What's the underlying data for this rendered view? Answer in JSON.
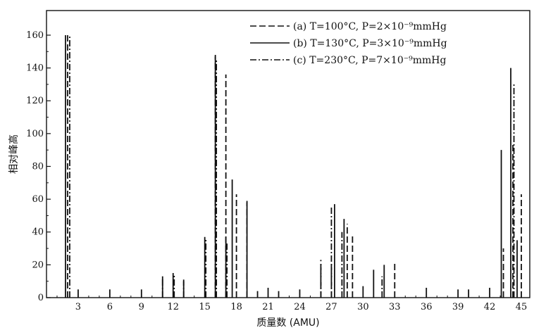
{
  "chart_data": {
    "type": "bar",
    "xlabel": "质量数 (AMU)",
    "ylabel": "相对峰高",
    "xlim": [
      0,
      45.8
    ],
    "ylim": [
      0,
      175
    ],
    "xticks": [
      3,
      6,
      9,
      12,
      15,
      18,
      21,
      24,
      27,
      30,
      33,
      36,
      39,
      42,
      45
    ],
    "yticks": [
      0,
      20,
      40,
      60,
      80,
      100,
      120,
      140,
      160
    ],
    "grid": false,
    "legend_position": "top-right",
    "series": [
      {
        "name": "(a) T=100°C, P=2×10⁻⁹mmHg",
        "line_style": "dashed",
        "points": [
          [
            2.0,
            160
          ],
          [
            16.0,
            148
          ],
          [
            17.0,
            136
          ],
          [
            18.0,
            63
          ],
          [
            19.0,
            59
          ],
          [
            26.0,
            23
          ],
          [
            27.0,
            21
          ],
          [
            28.5,
            45
          ],
          [
            29.0,
            38
          ],
          [
            33.0,
            22
          ],
          [
            43.3,
            30
          ],
          [
            44.2,
            94
          ],
          [
            45.0,
            63
          ]
        ]
      },
      {
        "name": "(b) T=130°C, P=3×10⁻⁹mmHg",
        "line_style": "solid",
        "points": [
          [
            1.8,
            160
          ],
          [
            3.0,
            5
          ],
          [
            6.0,
            5
          ],
          [
            9.0,
            5
          ],
          [
            11.0,
            13
          ],
          [
            12.0,
            15
          ],
          [
            13.0,
            11
          ],
          [
            15.0,
            37
          ],
          [
            16.0,
            147
          ],
          [
            17.0,
            37
          ],
          [
            17.6,
            72
          ],
          [
            19.0,
            58
          ],
          [
            20.0,
            4
          ],
          [
            21.0,
            6
          ],
          [
            22.0,
            4
          ],
          [
            24.0,
            5
          ],
          [
            27.3,
            57
          ],
          [
            28.2,
            48
          ],
          [
            30.0,
            7
          ],
          [
            31.0,
            17
          ],
          [
            32.0,
            20
          ],
          [
            36.0,
            6
          ],
          [
            39.0,
            5
          ],
          [
            40.0,
            5
          ],
          [
            42.0,
            6
          ],
          [
            43.1,
            90
          ],
          [
            44.0,
            140
          ],
          [
            44.6,
            35
          ]
        ]
      },
      {
        "name": "(c) T=230°C, P=7×10⁻⁹mmHg",
        "line_style": "dash-dot",
        "points": [
          [
            2.2,
            160
          ],
          [
            11.0,
            12
          ],
          [
            12.1,
            14
          ],
          [
            13.0,
            10
          ],
          [
            15.1,
            36
          ],
          [
            16.1,
            145
          ],
          [
            17.1,
            33
          ],
          [
            26.0,
            22
          ],
          [
            27.0,
            55
          ],
          [
            28.0,
            40
          ],
          [
            31.8,
            13
          ],
          [
            44.3,
            130
          ]
        ]
      }
    ],
    "legend": [
      {
        "marker": "dashed",
        "text": "(a) T=100°C, P=2×10⁻⁹mmHg"
      },
      {
        "marker": "solid",
        "text": "(b) T=130°C, P=3×10⁻⁹mmHg"
      },
      {
        "marker": "dash-dot",
        "text": "(c) T=230°C, P=7×10⁻⁹mmHg"
      }
    ]
  }
}
